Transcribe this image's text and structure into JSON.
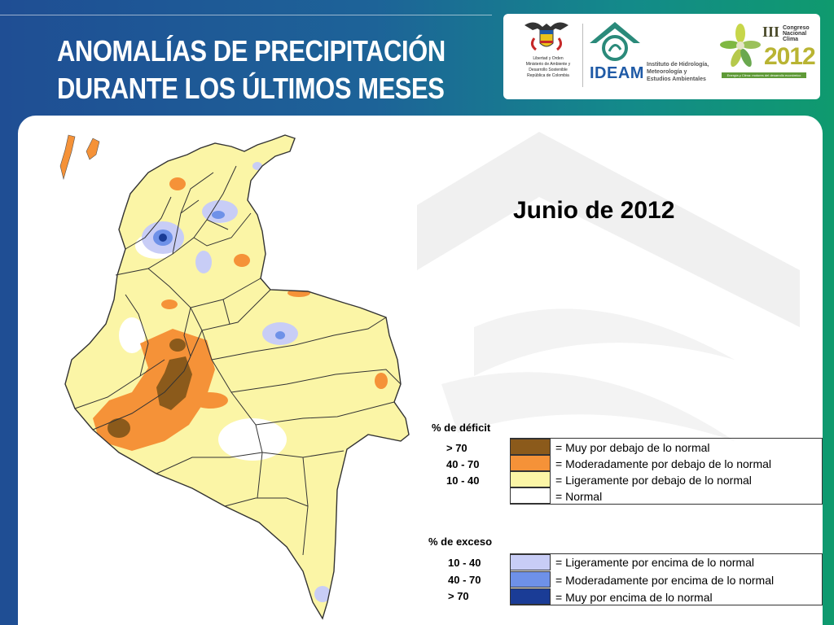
{
  "header": {
    "title_line1": "ANOMALÍAS DE PRECIPITACIÓN",
    "title_line2": "DURANTE LOS ÚLTIMOS MESES"
  },
  "logos": {
    "gov_text": [
      "Libertad y Orden",
      "Ministerio de Ambiente y",
      "Desarrollo Sostenible",
      "República de Colombia"
    ],
    "ideam_name": "IDEAM",
    "ideam_text": [
      "Instituto de Hidrología,",
      "Meteorología y",
      "Estudios Ambientales"
    ],
    "congress_text": [
      "Congreso",
      "Nacional",
      "Clima"
    ],
    "congress_roman": "III",
    "congress_year": "2012",
    "congress_tagline": "Energía y Clima: motores del desarrollo económico"
  },
  "map": {
    "subtitle": "Junio de 2012"
  },
  "legend": {
    "deficit_title": "% de déficit",
    "exceso_title": "% de exceso",
    "deficit": [
      {
        "range": "> 70",
        "label": "Muy por debajo de lo normal",
        "color": "#8B5A1B"
      },
      {
        "range": "40 -  70",
        "label": "Moderadamente por debajo de lo normal",
        "color": "#F59238"
      },
      {
        "range": "10 -  40",
        "label": "Ligeramente por debajo de lo normal",
        "color": "#FBF5A6"
      },
      {
        "range": "",
        "label": "Normal",
        "color": "#FFFFFF"
      }
    ],
    "exceso": [
      {
        "range": "10 -  40",
        "label": "Ligeramente por encima de lo normal",
        "color": "#C8CDF6"
      },
      {
        "range": "40 -  70",
        "label": "Moderadamente por encima de lo normal",
        "color": "#6E91E8"
      },
      {
        "range": "> 70",
        "label": "Muy por encima de lo normal",
        "color": "#1A3C96"
      }
    ]
  },
  "colors": {
    "header_blue": "#1f4e94",
    "header_green": "#0f9a6e",
    "ideam_green": "#2a8a7a",
    "ideam_blue": "#1f5aa6",
    "map_border": "#333333"
  }
}
